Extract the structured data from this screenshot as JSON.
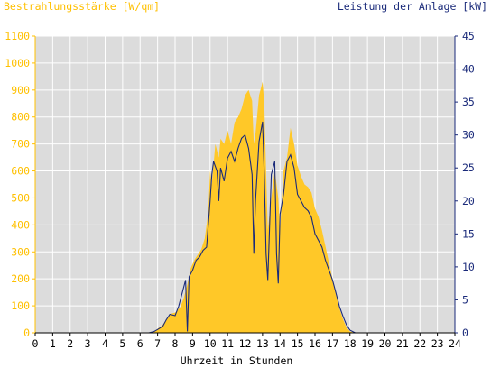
{
  "chart_data": {
    "type": "area",
    "ylabel_left": "Bestrahlungsstärke [W/qm]",
    "ylabel_right": "Leistung der Anlage [kW]",
    "xlabel": "Uhrzeit in Stunden",
    "xlim": [
      0,
      24
    ],
    "ylim_left": [
      0,
      1100
    ],
    "ylim_right": [
      0,
      45
    ],
    "x_ticks": [
      "0",
      "1",
      "2",
      "3",
      "4",
      "5",
      "6",
      "7",
      "8",
      "9",
      "10",
      "11",
      "12",
      "13",
      "14",
      "15",
      "16",
      "17",
      "18",
      "19",
      "20",
      "21",
      "22",
      "23",
      "24"
    ],
    "y_ticks_left": [
      "0",
      "100",
      "200",
      "300",
      "400",
      "500",
      "600",
      "700",
      "800",
      "900",
      "1000",
      "1100"
    ],
    "y_ticks_right": [
      "0",
      "5",
      "10",
      "15",
      "20",
      "25",
      "30",
      "35",
      "40",
      "45"
    ],
    "grid": true,
    "colors": {
      "irradiance_fill": "#ffc828",
      "power_line": "#1a2a7a",
      "plot_bg": "#dcdcdc",
      "grid": "#ffffff",
      "left_axis": "#ffc000",
      "right_axis": "#1a2a7a"
    },
    "series": [
      {
        "type": "area",
        "axis": "left",
        "x": [
          0,
          6.5,
          6.8,
          7.0,
          7.3,
          7.5,
          7.7,
          8.0,
          8.3,
          8.5,
          8.7,
          8.9,
          9.1,
          9.3,
          9.5,
          9.7,
          9.9,
          10.0,
          10.1,
          10.3,
          10.5,
          10.6,
          10.8,
          11.0,
          11.2,
          11.4,
          11.6,
          11.8,
          12.0,
          12.2,
          12.4,
          12.5,
          12.6,
          12.8,
          13.0,
          13.1,
          13.2,
          13.3,
          13.5,
          13.7,
          13.9,
          14.0,
          14.2,
          14.4,
          14.6,
          14.8,
          15.0,
          15.2,
          15.4,
          15.6,
          15.8,
          16.0,
          16.2,
          16.4,
          16.6,
          16.8,
          17.0,
          17.2,
          17.4,
          17.6,
          17.8,
          18.0,
          18.3,
          24
        ],
        "values": [
          0,
          0,
          5,
          15,
          30,
          50,
          70,
          75,
          95,
          130,
          180,
          240,
          270,
          290,
          310,
          350,
          450,
          600,
          550,
          700,
          650,
          720,
          700,
          750,
          700,
          780,
          800,
          830,
          880,
          900,
          860,
          700,
          740,
          880,
          930,
          850,
          600,
          380,
          500,
          600,
          500,
          380,
          600,
          650,
          760,
          700,
          620,
          580,
          550,
          540,
          520,
          460,
          430,
          380,
          320,
          260,
          200,
          140,
          90,
          50,
          20,
          5,
          0,
          0
        ]
      },
      {
        "type": "line",
        "axis": "right",
        "x": [
          0,
          6.5,
          6.8,
          7.0,
          7.3,
          7.5,
          7.7,
          8.0,
          8.2,
          8.4,
          8.6,
          8.7,
          8.8,
          9.0,
          9.2,
          9.4,
          9.6,
          9.8,
          10.0,
          10.1,
          10.2,
          10.4,
          10.5,
          10.6,
          10.8,
          11.0,
          11.2,
          11.4,
          11.6,
          11.8,
          12.0,
          12.2,
          12.4,
          12.5,
          12.6,
          12.8,
          13.0,
          13.1,
          13.2,
          13.3,
          13.5,
          13.7,
          13.8,
          13.9,
          14.0,
          14.2,
          14.4,
          14.6,
          14.8,
          15.0,
          15.2,
          15.4,
          15.6,
          15.8,
          16.0,
          16.2,
          16.4,
          16.6,
          16.8,
          17.0,
          17.2,
          17.4,
          17.6,
          17.8,
          18.0,
          18.3,
          24
        ],
        "values": [
          0,
          0,
          0.2,
          0.5,
          1.0,
          2.0,
          2.8,
          2.6,
          4.0,
          6.0,
          8.0,
          0.2,
          8.5,
          9.5,
          11.0,
          11.5,
          12.5,
          13.0,
          20.0,
          24.0,
          26.0,
          24.5,
          20.0,
          25.0,
          23.0,
          26.5,
          27.5,
          26.0,
          28.0,
          29.5,
          30.0,
          28.0,
          24.0,
          12.0,
          20.0,
          29.0,
          32.0,
          24.0,
          12.0,
          8.0,
          24.0,
          26.0,
          12.0,
          7.5,
          18.0,
          21.0,
          26.0,
          27.0,
          25.0,
          21.0,
          20.0,
          19.0,
          18.5,
          17.5,
          15.0,
          14.0,
          13.0,
          11.0,
          9.5,
          8.0,
          6.0,
          4.0,
          2.5,
          1.2,
          0.4,
          0,
          0
        ]
      }
    ]
  }
}
